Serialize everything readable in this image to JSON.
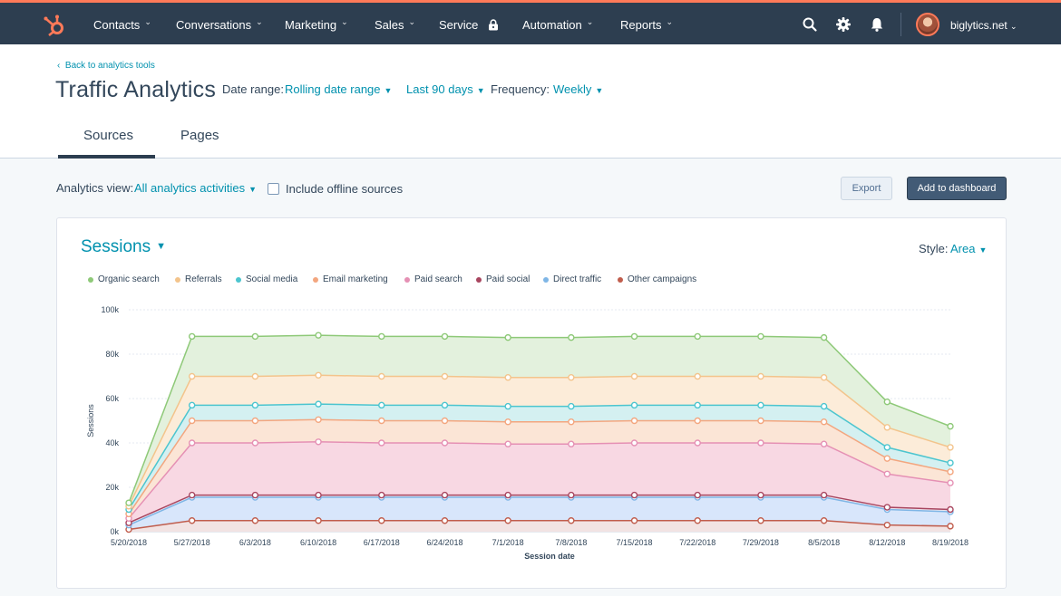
{
  "nav": {
    "items": [
      {
        "label": "Contacts",
        "dropdown": true
      },
      {
        "label": "Conversations",
        "dropdown": true
      },
      {
        "label": "Marketing",
        "dropdown": true
      },
      {
        "label": "Sales",
        "dropdown": true
      },
      {
        "label": "Service",
        "dropdown": false,
        "locked": true
      },
      {
        "label": "Automation",
        "dropdown": true
      },
      {
        "label": "Reports",
        "dropdown": true
      }
    ],
    "account": "biglytics.net",
    "icons": [
      "hubspot-logo-icon",
      "search-icon",
      "gear-icon",
      "bell-icon"
    ],
    "colors": {
      "bar": "#2d3e50",
      "accent": "#ff7a59"
    }
  },
  "header": {
    "back_link": "Back to analytics tools",
    "title": "Traffic Analytics",
    "date_range_label": "Date range:",
    "date_range_value": "Rolling date range",
    "period_value": "Last 90 days",
    "frequency_label": "Frequency:",
    "frequency_value": "Weekly",
    "tabs": [
      {
        "label": "Sources",
        "active": true
      },
      {
        "label": "Pages",
        "active": false
      }
    ]
  },
  "toolbar": {
    "analytics_view_label": "Analytics view:",
    "analytics_view_value": "All analytics activities",
    "offline_label": "Include offline sources",
    "offline_checked": false,
    "export_label": "Export",
    "dashboard_label": "Add to dashboard"
  },
  "card": {
    "metric": "Sessions",
    "style_label": "Style:",
    "style_value": "Area"
  },
  "chart_data": {
    "type": "area",
    "stacked": true,
    "title": "",
    "xlabel": "Session date",
    "ylabel": "Sessions",
    "ylim": [
      0,
      100000
    ],
    "y_ticks": [
      "0k",
      "20k",
      "40k",
      "60k",
      "80k",
      "100k"
    ],
    "legend_position": "top-left",
    "grid": true,
    "x": [
      "5/20/2018",
      "5/27/2018",
      "6/3/2018",
      "6/10/2018",
      "6/17/2018",
      "6/24/2018",
      "7/1/2018",
      "7/8/2018",
      "7/15/2018",
      "7/22/2018",
      "7/29/2018",
      "8/5/2018",
      "8/12/2018",
      "8/19/2018"
    ],
    "series": [
      {
        "name": "Other campaigns",
        "color": "#c05d4d",
        "fill": "#f2e3e3",
        "values": [
          1000,
          5000,
          5000,
          5000,
          5000,
          5000,
          5000,
          5000,
          5000,
          5000,
          5000,
          5000,
          3000,
          2500
        ]
      },
      {
        "name": "Direct traffic",
        "color": "#7fb6e6",
        "fill": "#d8e6fb",
        "values": [
          2000,
          10500,
          10500,
          10500,
          10500,
          10500,
          10500,
          10500,
          10500,
          10500,
          10500,
          10500,
          7000,
          6500
        ]
      },
      {
        "name": "Paid social",
        "color": "#a8455f",
        "fill": "#ece4ec",
        "values": [
          1000,
          1000,
          1000,
          1000,
          1000,
          1000,
          1000,
          1000,
          1000,
          1000,
          1000,
          1000,
          1000,
          1000
        ]
      },
      {
        "name": "Paid search",
        "color": "#e590b4",
        "fill": "#f8d8e3",
        "values": [
          2000,
          23500,
          23500,
          24000,
          23500,
          23500,
          23000,
          23000,
          23500,
          23500,
          23500,
          23000,
          15000,
          12000
        ]
      },
      {
        "name": "Email marketing",
        "color": "#f3a67f",
        "fill": "#fbe5d6",
        "values": [
          2000,
          10000,
          10000,
          10000,
          10000,
          10000,
          10000,
          10000,
          10000,
          10000,
          10000,
          10000,
          7000,
          5000
        ]
      },
      {
        "name": "Social media",
        "color": "#4cc5cf",
        "fill": "#d4f0f1",
        "values": [
          2000,
          7000,
          7000,
          7000,
          7000,
          7000,
          7000,
          7000,
          7000,
          7000,
          7000,
          7000,
          5000,
          4000
        ]
      },
      {
        "name": "Referrals",
        "color": "#f3c48c",
        "fill": "#fcecd9",
        "values": [
          1500,
          13000,
          13000,
          13000,
          13000,
          13000,
          13000,
          13000,
          13000,
          13000,
          13000,
          13000,
          9000,
          7000
        ]
      },
      {
        "name": "Organic search",
        "color": "#8ec978",
        "fill": "#e3f1dd",
        "values": [
          1500,
          18000,
          18000,
          18000,
          18000,
          18000,
          18000,
          18000,
          18000,
          18000,
          18000,
          18000,
          11500,
          9500
        ]
      }
    ]
  }
}
